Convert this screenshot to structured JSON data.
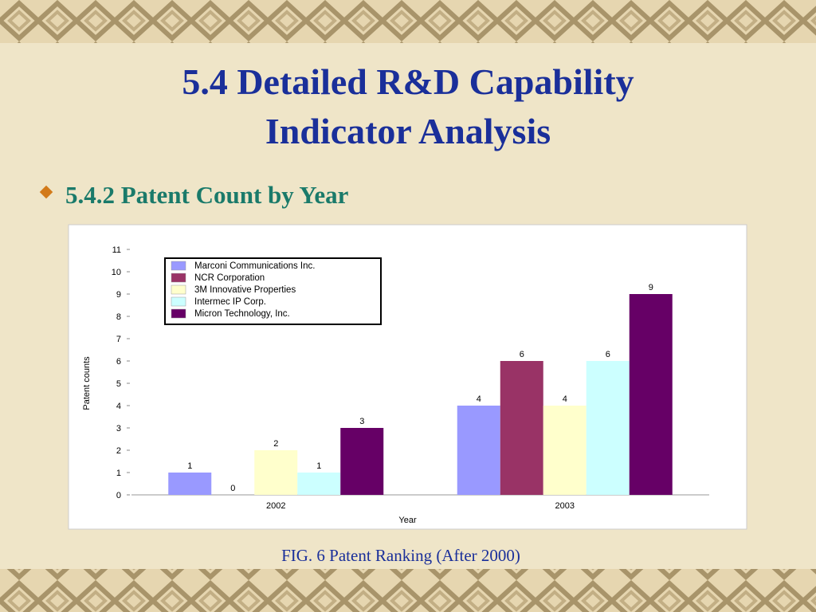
{
  "slide": {
    "title": [
      "5.4 Detailed R&D Capability",
      "Indicator Analysis"
    ],
    "subtitle": "5.4.2 Patent Count by Year",
    "caption": "FIG. 6 Patent Ranking (After 2000)"
  },
  "chart_data": {
    "type": "bar",
    "categories": [
      "2002",
      "2003"
    ],
    "series": [
      {
        "name": "Marconi Communications Inc.",
        "color": "#9999ff",
        "values": [
          1,
          4
        ]
      },
      {
        "name": "NCR Corporation",
        "color": "#993366",
        "values": [
          0,
          6
        ]
      },
      {
        "name": "3M Innovative Properties",
        "color": "#ffffcc",
        "values": [
          2,
          4
        ]
      },
      {
        "name": "Intermec IP Corp.",
        "color": "#ccffff",
        "values": [
          1,
          6
        ]
      },
      {
        "name": "Micron Technology, Inc.",
        "color": "#660066",
        "values": [
          3,
          9
        ]
      }
    ],
    "ylim": [
      0,
      11
    ],
    "yticks": [
      0,
      1,
      2,
      3,
      4,
      5,
      6,
      7,
      8,
      9,
      10,
      11
    ],
    "ylabel": "Patent counts",
    "xlabel": "Year",
    "legend": "upper left",
    "grid": false
  }
}
